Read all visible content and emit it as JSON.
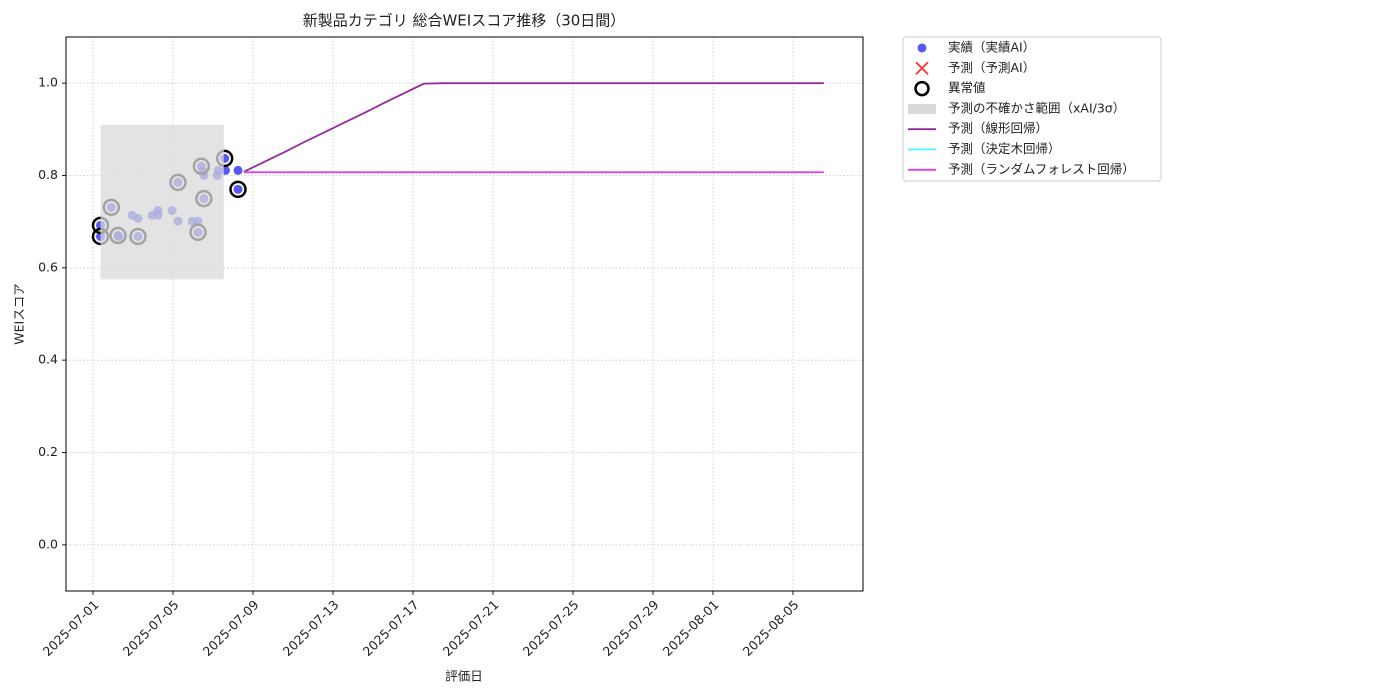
{
  "chart_data": {
    "type": "line",
    "title": "新製品カテゴリ 総合WEIスコア推移（30日間）",
    "xlabel": "評価日",
    "ylabel": "WEIスコア",
    "xlim": [
      "2025-06-29T15:36",
      "2025-08-08T12:00"
    ],
    "xticks": [
      "2025-07-01",
      "2025-07-05",
      "2025-07-09",
      "2025-07-13",
      "2025-07-17",
      "2025-07-21",
      "2025-07-25",
      "2025-07-29",
      "2025-08-01",
      "2025-08-05"
    ],
    "ylim": [
      -0.1,
      1.1
    ],
    "yticks": [
      {
        "value": 0,
        "label": "0.0"
      },
      0.2,
      0.4,
      0.6,
      0.8,
      {
        "value": 1,
        "label": "1.0"
      }
    ],
    "grid": true,
    "legend": "outside-upper-right",
    "series": [
      {
        "name": "実績（実績AI）",
        "type": "scatter",
        "marker": "circle",
        "color": "#2020ee",
        "x": [
          "2025-07-01T09:00",
          "2025-07-01T09:00",
          "2025-07-01T22:00",
          "2025-07-02T06:00",
          "2025-07-02T07:00",
          "2025-07-02T23:00",
          "2025-07-03T06:00",
          "2025-07-03T06:00",
          "2025-07-03T23:00",
          "2025-07-04T06:00",
          "2025-07-04T06:00",
          "2025-07-04T23:00",
          "2025-07-05T06:00",
          "2025-07-05T06:00",
          "2025-07-05T23:00",
          "2025-07-06T06:00",
          "2025-07-06T06:00",
          "2025-07-06T10:00",
          "2025-07-06T12:00",
          "2025-07-06T13:00",
          "2025-07-06T13:00",
          "2025-07-07T05:00",
          "2025-07-07T06:00",
          "2025-07-07T14:00",
          "2025-07-07T15:00",
          "2025-07-08T06:00",
          "2025-07-08T06:00"
        ],
        "values": [
          0.692,
          0.668,
          0.731,
          0.67,
          0.668,
          0.714,
          0.707,
          0.668,
          0.714,
          0.724,
          0.714,
          0.724,
          0.785,
          0.701,
          0.701,
          0.701,
          0.677,
          0.82,
          0.809,
          0.8,
          0.75,
          0.8,
          0.811,
          0.837,
          0.811,
          0.811,
          0.77
        ]
      },
      {
        "name": "予測（予測AI）",
        "type": "scatter",
        "marker": "x",
        "color": "#ff3030",
        "x": [],
        "values": []
      },
      {
        "name": "異常値",
        "type": "scatter",
        "marker": "ring",
        "color": "#000000",
        "x": [
          "2025-07-01T09:00",
          "2025-07-01T09:00",
          "2025-07-01T22:00",
          "2025-07-02T06:00",
          "2025-07-03T06:00",
          "2025-07-05T06:00",
          "2025-07-06T06:00",
          "2025-07-06T10:00",
          "2025-07-06T13:00",
          "2025-07-07T14:00",
          "2025-07-08T06:00"
        ],
        "values": [
          0.692,
          0.668,
          0.731,
          0.67,
          0.668,
          0.785,
          0.677,
          0.82,
          0.75,
          0.837,
          0.77
        ]
      },
      {
        "name": "予測の不確かさ範囲（xAI/3σ）",
        "type": "band",
        "color": "#d9d9d9",
        "x": [
          "2025-07-01T09:00",
          "2025-07-07T13:00"
        ],
        "lower": 0.575,
        "upper": 0.91
      },
      {
        "name": "予測（線形回帰）",
        "type": "line",
        "color": "#962a9e",
        "x": [
          "2025-07-08T13:00",
          "2025-07-09T13:00",
          "2025-07-10T13:00",
          "2025-07-11T13:00",
          "2025-07-12T13:00",
          "2025-07-13T13:00",
          "2025-07-14T13:00",
          "2025-07-15T13:00",
          "2025-07-16T13:00",
          "2025-07-17T13:00",
          "2025-07-18T13:00",
          "2025-07-19T13:00",
          "2025-07-20T13:00",
          "2025-07-21T13:00",
          "2025-07-22T13:00",
          "2025-07-23T13:00",
          "2025-07-24T13:00",
          "2025-07-25T13:00",
          "2025-07-26T13:00",
          "2025-07-27T13:00",
          "2025-07-28T13:00",
          "2025-07-29T13:00",
          "2025-07-30T13:00",
          "2025-07-31T13:00",
          "2025-08-01T13:00",
          "2025-08-02T13:00",
          "2025-08-03T13:00",
          "2025-08-04T13:00",
          "2025-08-05T13:00",
          "2025-08-06T13:00"
        ],
        "values": [
          0.808,
          0.829,
          0.85,
          0.872,
          0.893,
          0.914,
          0.935,
          0.957,
          0.978,
          0.999,
          1,
          1,
          1,
          1,
          1,
          1,
          1,
          1,
          1,
          1,
          1,
          1,
          1,
          1,
          1,
          1,
          1,
          1,
          1,
          1
        ]
      },
      {
        "name": "予測（決定木回帰）",
        "type": "line",
        "color": "#40ffff",
        "x": [
          "2025-07-08T13:00",
          "2025-07-09T13:00",
          "2025-07-10T13:00",
          "2025-07-11T13:00",
          "2025-07-12T13:00",
          "2025-07-13T13:00",
          "2025-07-14T13:00",
          "2025-07-15T13:00",
          "2025-07-16T13:00",
          "2025-07-17T13:00",
          "2025-07-18T13:00",
          "2025-07-19T13:00",
          "2025-07-20T13:00",
          "2025-07-21T13:00",
          "2025-07-22T13:00",
          "2025-07-23T13:00",
          "2025-07-24T13:00",
          "2025-07-25T13:00",
          "2025-07-26T13:00",
          "2025-07-27T13:00",
          "2025-07-28T13:00",
          "2025-07-29T13:00",
          "2025-07-30T13:00",
          "2025-07-31T13:00",
          "2025-08-01T13:00",
          "2025-08-02T13:00",
          "2025-08-03T13:00",
          "2025-08-04T13:00",
          "2025-08-05T13:00",
          "2025-08-06T13:00"
        ],
        "values": [
          0.807,
          0.807,
          0.807,
          0.807,
          0.807,
          0.807,
          0.807,
          0.807,
          0.807,
          0.807,
          0.807,
          0.807,
          0.807,
          0.807,
          0.807,
          0.807,
          0.807,
          0.807,
          0.807,
          0.807,
          0.807,
          0.807,
          0.807,
          0.807,
          0.807,
          0.807,
          0.807,
          0.807,
          0.807,
          0.807
        ]
      },
      {
        "name": "予測（ランダムフォレスト回帰）",
        "type": "line",
        "color": "#e83ae8",
        "x": [
          "2025-07-08T13:00",
          "2025-07-09T13:00",
          "2025-07-10T13:00",
          "2025-07-11T13:00",
          "2025-07-12T13:00",
          "2025-07-13T13:00",
          "2025-07-14T13:00",
          "2025-07-15T13:00",
          "2025-07-16T13:00",
          "2025-07-17T13:00",
          "2025-07-18T13:00",
          "2025-07-19T13:00",
          "2025-07-20T13:00",
          "2025-07-21T13:00",
          "2025-07-22T13:00",
          "2025-07-23T13:00",
          "2025-07-24T13:00",
          "2025-07-25T13:00",
          "2025-07-26T13:00",
          "2025-07-27T13:00",
          "2025-07-28T13:00",
          "2025-07-29T13:00",
          "2025-07-30T13:00",
          "2025-07-31T13:00",
          "2025-08-01T13:00",
          "2025-08-02T13:00",
          "2025-08-03T13:00",
          "2025-08-04T13:00",
          "2025-08-05T13:00",
          "2025-08-06T13:00"
        ],
        "values": [
          0.807,
          0.807,
          0.807,
          0.807,
          0.807,
          0.807,
          0.807,
          0.807,
          0.807,
          0.807,
          0.807,
          0.807,
          0.807,
          0.807,
          0.807,
          0.807,
          0.807,
          0.807,
          0.807,
          0.807,
          0.807,
          0.807,
          0.807,
          0.807,
          0.807,
          0.807,
          0.807,
          0.807,
          0.807,
          0.807
        ]
      }
    ]
  }
}
